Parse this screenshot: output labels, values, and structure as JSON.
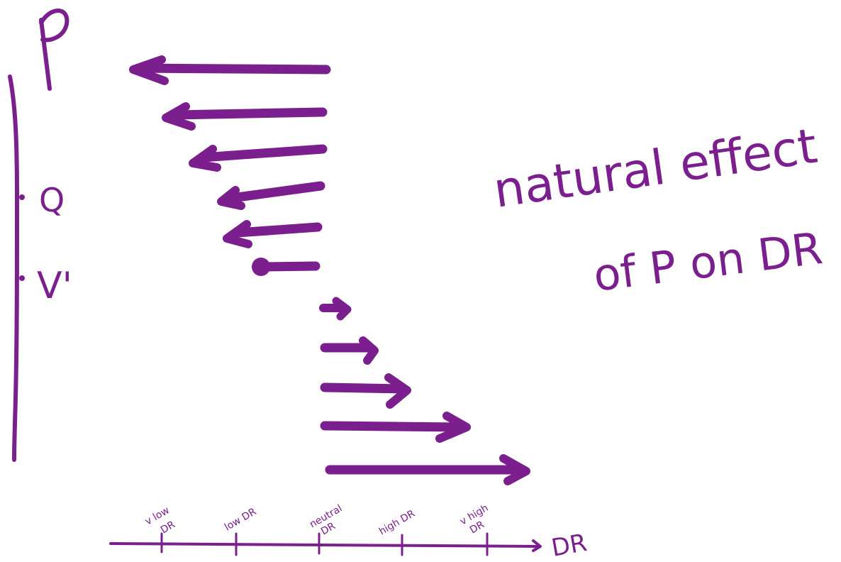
{
  "ink_color": "#7b1f8e",
  "axis_label_vertical": "P",
  "vertical_marks": [
    {
      "label": "Q"
    },
    {
      "label": "V'"
    }
  ],
  "annotation": {
    "line1": "natural effect",
    "line2": "of P on DR"
  },
  "x_axis": {
    "label": "DR",
    "ticks": [
      {
        "line1": "v low",
        "line2": "DR"
      },
      {
        "line1": "low DR",
        "line2": ""
      },
      {
        "line1": "neutral",
        "line2": "DR"
      },
      {
        "line1": "high DR",
        "line2": ""
      },
      {
        "line1": "v high",
        "line2": "DR"
      }
    ]
  }
}
